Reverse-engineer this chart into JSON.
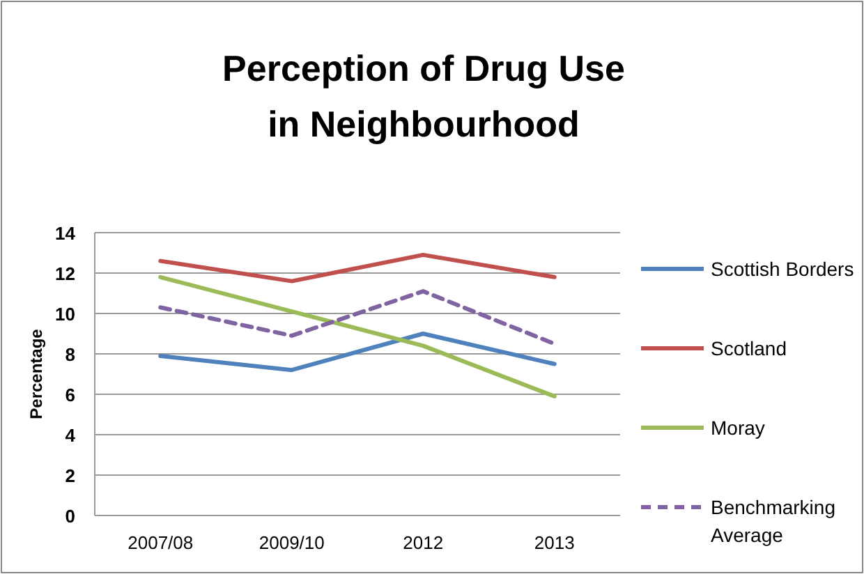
{
  "chart_data": {
    "type": "line",
    "title": "Perception of Drug Use in Neighbourhood",
    "ylabel": "Percentage",
    "categories": [
      "2007/08",
      "2009/10",
      "2012",
      "2013"
    ],
    "series": [
      {
        "name": "Scottish Borders",
        "color": "#4f81bd",
        "values": [
          7.9,
          7.2,
          9.0,
          7.5
        ]
      },
      {
        "name": "Scotland",
        "color": "#c0504d",
        "values": [
          12.6,
          11.6,
          12.9,
          11.8
        ]
      },
      {
        "name": "Moray",
        "color": "#9bbb59",
        "values": [
          11.8,
          10.1,
          8.4,
          5.9
        ]
      },
      {
        "name": "Benchmarking Average",
        "color": "#8064a2",
        "values": [
          10.3,
          8.9,
          11.1,
          8.5
        ],
        "line_style": "dashed"
      }
    ],
    "ylim": [
      0,
      14
    ],
    "yticks": [
      0,
      2,
      4,
      6,
      8,
      10,
      12,
      14
    ],
    "grid": "y",
    "legend": "right",
    "marker": "none",
    "line_style": "solid"
  }
}
